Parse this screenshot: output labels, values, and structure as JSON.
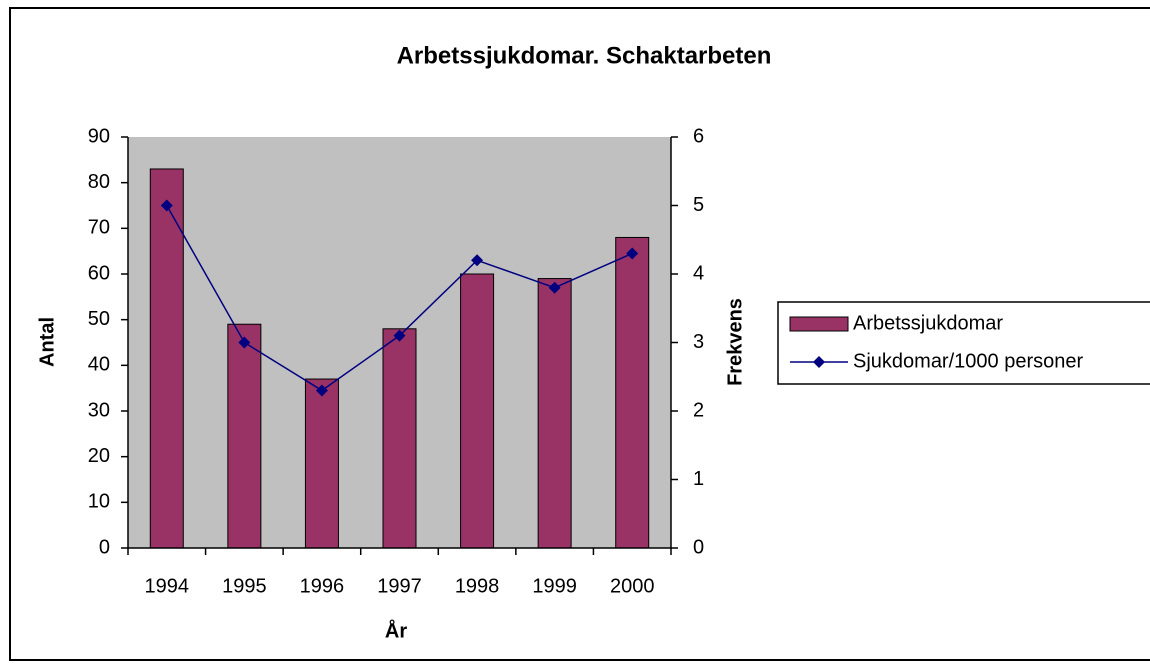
{
  "chart_data": {
    "type": "bar",
    "title": "Arbetssjukdomar. Schaktarbeten",
    "x_label": "År",
    "y_label": "Antal",
    "y2_label": "Frekvens",
    "categories": [
      "1994",
      "1995",
      "1996",
      "1997",
      "1998",
      "1999",
      "2000"
    ],
    "series": [
      {
        "name": "Arbetssjukdomar",
        "type": "bar",
        "color": "#993366",
        "values": [
          83,
          49,
          37,
          48,
          60,
          59,
          68
        ]
      },
      {
        "name": "Sjukdomar/1000 personer",
        "type": "line",
        "axis": "y2",
        "color": "#000080",
        "values": [
          5.0,
          3.0,
          2.3,
          3.1,
          4.2,
          3.8,
          4.3
        ]
      }
    ],
    "ylim": [
      0,
      90
    ],
    "yticks": [
      0,
      10,
      20,
      30,
      40,
      50,
      60,
      70,
      80,
      90
    ],
    "y2lim": [
      0,
      6
    ],
    "y2ticks": [
      0,
      1,
      2,
      3,
      4,
      5,
      6
    ],
    "plot_background": "#c0c0c0",
    "legend": "right"
  }
}
